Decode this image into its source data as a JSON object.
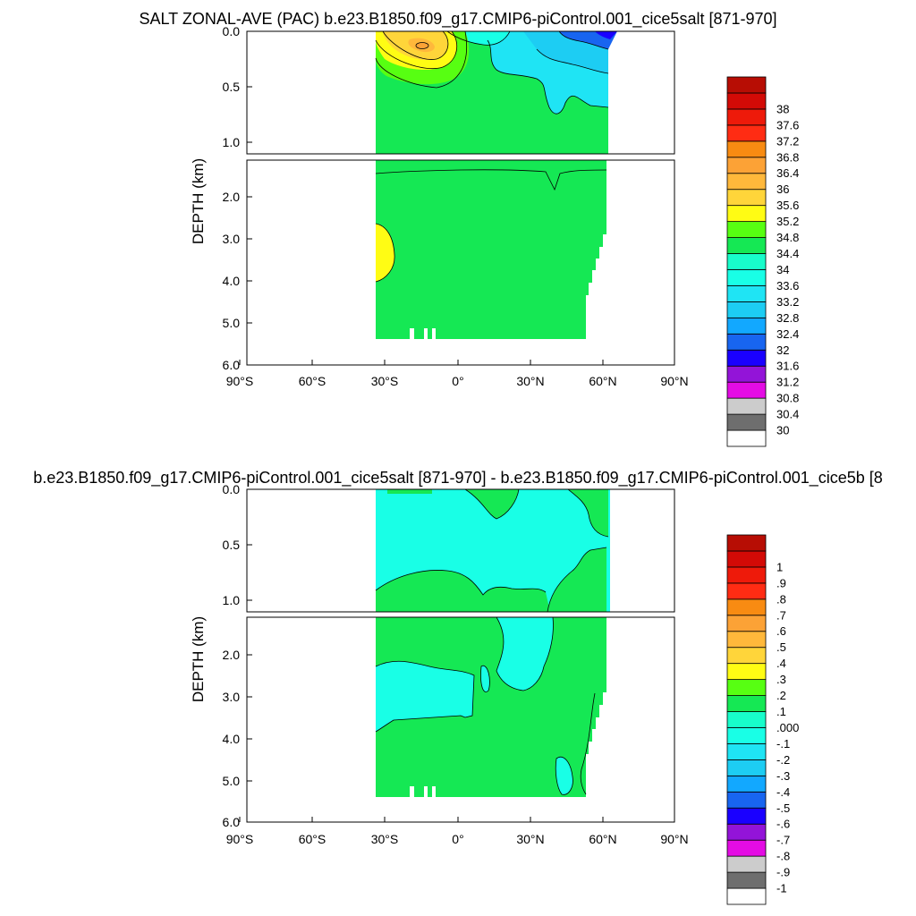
{
  "colors": {
    "salinity": [
      "#ffffff",
      "#6e6e6e",
      "#cccccc",
      "#e40ce4",
      "#9314d8",
      "#1a00ff",
      "#1865f0",
      "#12a8ff",
      "#1dcdf3",
      "#1fe4f4",
      "#19ffe6",
      "#18fdcb",
      "#15e854",
      "#57ff12",
      "#fffc14",
      "#ffd53a",
      "#ffb83b",
      "#fca236",
      "#f88b12",
      "#ff2c13",
      "#ee1a0a",
      "#d30a06",
      "#b70d04"
    ],
    "difference": [
      "#ffffff",
      "#6e6e6e",
      "#cccccc",
      "#e40ce4",
      "#9314d8",
      "#1a00ff",
      "#1865f0",
      "#12a8ff",
      "#1dcdf3",
      "#1fe4f4",
      "#19ffe6",
      "#18fdcb",
      "#15e854",
      "#57ff12",
      "#fffc14",
      "#ffd53a",
      "#ffb83b",
      "#fca236",
      "#f88b12",
      "#ff2c13",
      "#ee1a0a",
      "#d30a06",
      "#b70d04"
    ]
  },
  "chart_data": [
    {
      "type": "heatmap",
      "title": "SALT ZONAL-AVE (PAC) b.e23.B1850.f09_g17.CMIP6-piControl.001_cice5salt [871-970]",
      "ylabel": "DEPTH (km)",
      "xlabel": "",
      "x_ticks": [
        "90°S",
        "60°S",
        "30°S",
        "0°",
        "30°N",
        "60°N",
        "90°N"
      ],
      "upper_y_ticks": [
        "0.0",
        "0.5",
        "1.0"
      ],
      "lower_y_ticks": [
        "2.0",
        "3.0",
        "4.0",
        "5.0",
        "6.0"
      ],
      "xlim": [
        -90,
        90
      ],
      "ylim_upper_km": [
        0,
        1.15
      ],
      "ylim_lower_km": [
        1.15,
        6.0
      ],
      "colorbar_levels": [
        "30",
        "30.4",
        "30.8",
        "31.2",
        "31.6",
        "32",
        "32.4",
        "32.8",
        "33.2",
        "33.6",
        "34",
        "34.4",
        "34.8",
        "35.2",
        "35.6",
        "36",
        "36.4",
        "36.8",
        "37.2",
        "37.6",
        "38"
      ],
      "features": [
        {
          "lat": -15,
          "depth_km": 0.15,
          "value": 35.8
        },
        {
          "lat": -32,
          "depth_km": 3.3,
          "value": 35.0
        },
        {
          "lat": 62,
          "depth_km": 0.0,
          "value": 32.0
        }
      ]
    },
    {
      "type": "heatmap",
      "title": "b.e23.B1850.f09_g17.CMIP6-piControl.001_cice5salt [871-970] - b.e23.B1850.f09_g17.CMIP6-piControl.001_cice5b [8",
      "ylabel": "DEPTH (km)",
      "xlabel": "",
      "x_ticks": [
        "90°S",
        "60°S",
        "30°S",
        "0°",
        "30°N",
        "60°N",
        "90°N"
      ],
      "upper_y_ticks": [
        "0.0",
        "0.5",
        "1.0"
      ],
      "lower_y_ticks": [
        "2.0",
        "3.0",
        "4.0",
        "5.0",
        "6.0"
      ],
      "xlim": [
        -90,
        90
      ],
      "ylim_upper_km": [
        0,
        1.15
      ],
      "ylim_lower_km": [
        1.15,
        6.0
      ],
      "colorbar_levels": [
        "-1",
        "-.9",
        "-.8",
        "-.7",
        "-.6",
        "-.5",
        "-.4",
        "-.3",
        "-.2",
        "-.1",
        ".000",
        ".1",
        ".2",
        ".3",
        ".4",
        ".5",
        ".6",
        ".7",
        ".8",
        ".9",
        "1"
      ]
    }
  ]
}
